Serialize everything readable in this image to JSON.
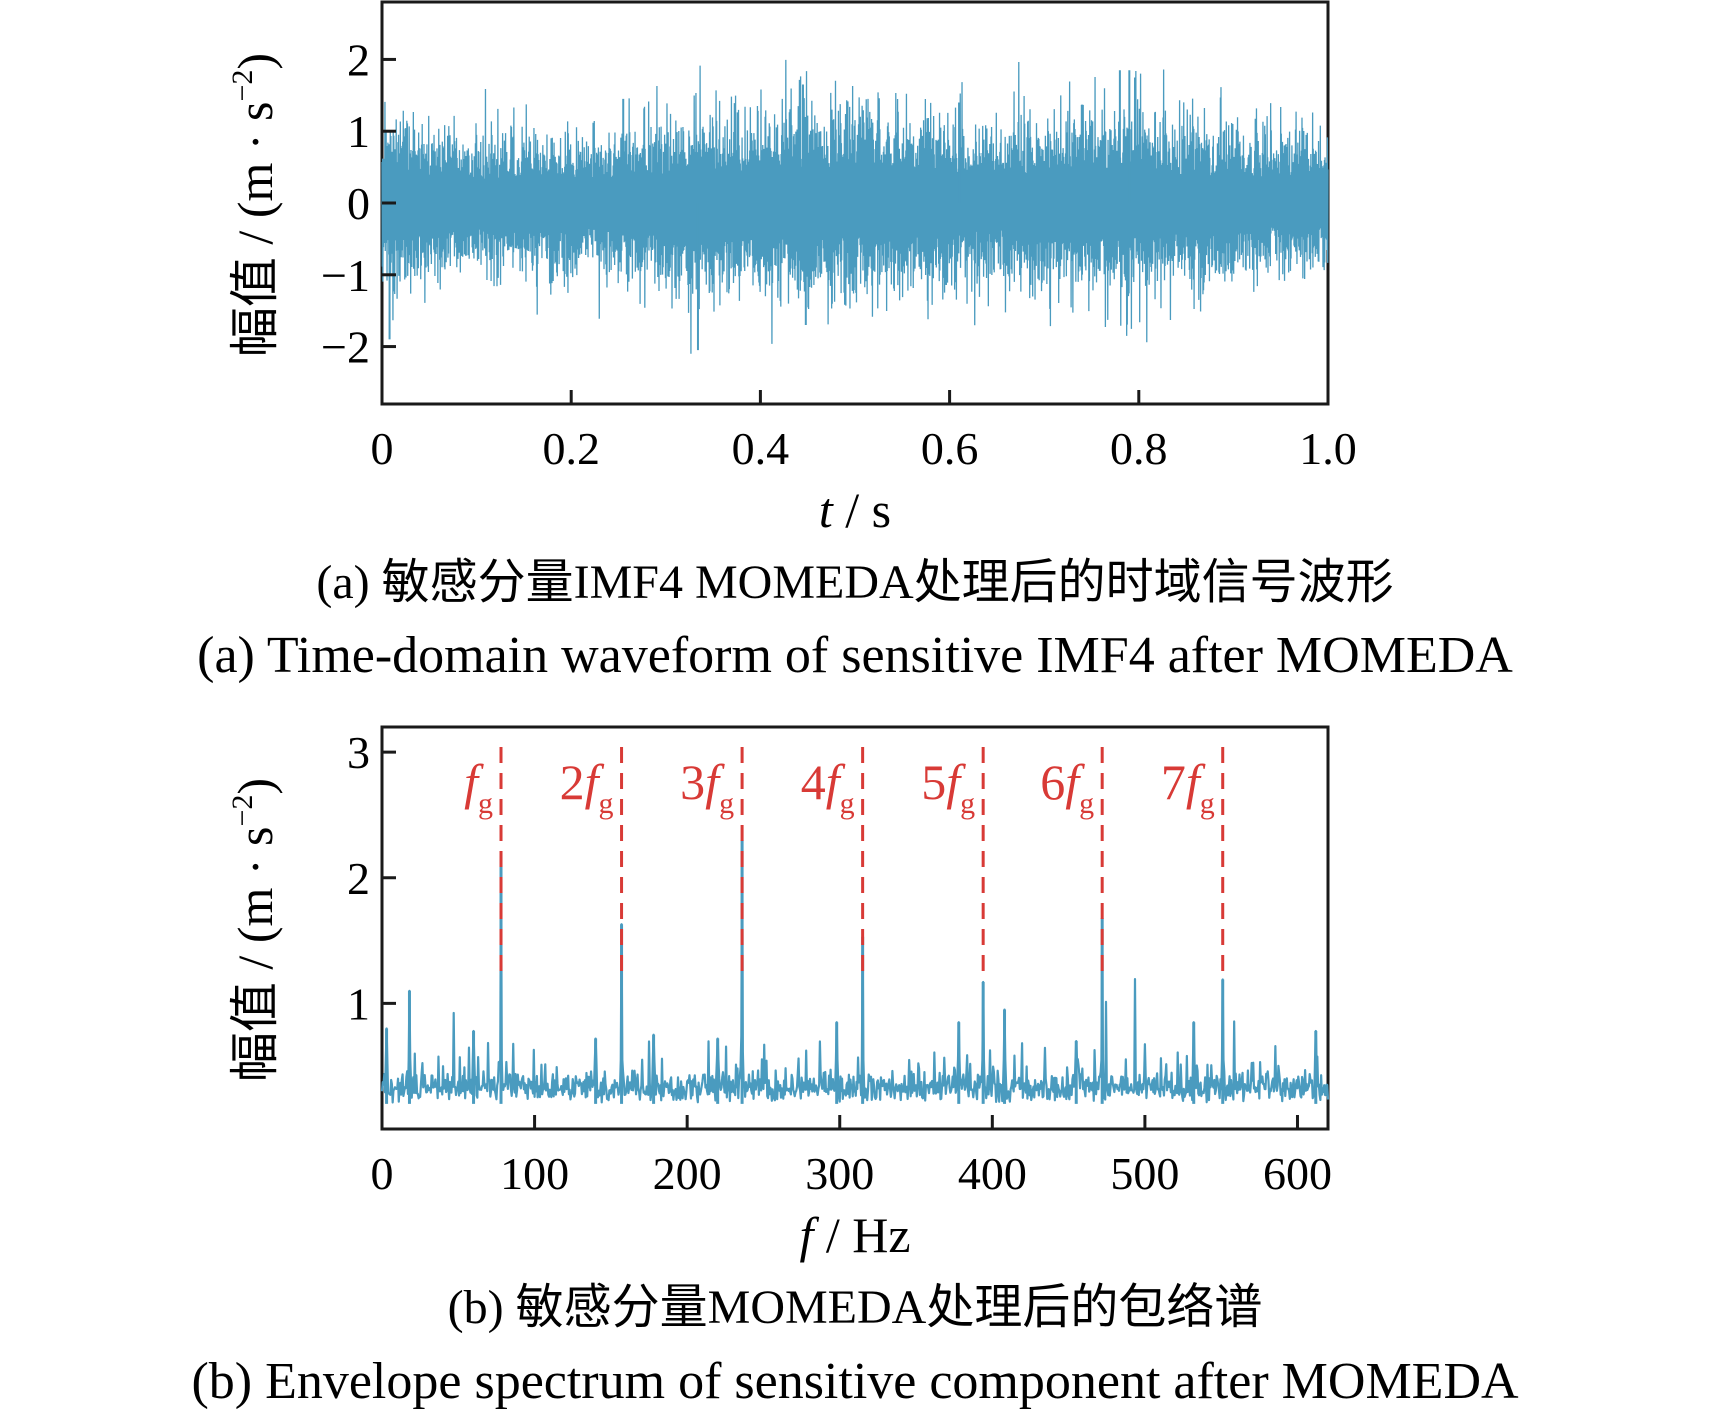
{
  "colors": {
    "signal": "#4a9bbf",
    "harmonic": "#d83a36",
    "axis": "#1a1a1a"
  },
  "chart_data": [
    {
      "type": "line",
      "panel": "a",
      "xlabel_var": "t",
      "xlabel_unit": " / s",
      "ylabel": "幅值 / (m · s",
      "ylabel_sup": "−2",
      "ylabel_close": ")",
      "xlim": [
        0,
        1.0
      ],
      "ylim": [
        -2.8,
        2.8
      ],
      "xticks": [
        0,
        0.2,
        0.4,
        0.6,
        0.8,
        1.0
      ],
      "xtick_labels": [
        "0",
        "0.2",
        "0.4",
        "0.6",
        "0.8",
        "1.0"
      ],
      "yticks": [
        -2,
        -1,
        0,
        1,
        2
      ],
      "ytick_labels": [
        "−2",
        "−1",
        "0",
        "1",
        "2"
      ],
      "series": [
        {
          "envelope_x": [
            0.0,
            0.05,
            0.1,
            0.15,
            0.2,
            0.25,
            0.3,
            0.35,
            0.4,
            0.45,
            0.5,
            0.55,
            0.6,
            0.65,
            0.7,
            0.75,
            0.8,
            0.85,
            0.9,
            0.95,
            1.0
          ],
          "envelope_amplitude": [
            1.2,
            1.0,
            0.9,
            0.9,
            0.9,
            1.0,
            1.1,
            1.2,
            1.3,
            1.3,
            1.3,
            1.2,
            1.1,
            1.0,
            1.1,
            1.2,
            1.3,
            1.1,
            1.0,
            0.9,
            0.9
          ],
          "peaks": [
            {
              "x": 0.008,
              "y": -1.9
            },
            {
              "x": 0.334,
              "y": -2.05
            },
            {
              "x": 0.445,
              "y": 1.65
            },
            {
              "x": 0.78,
              "y": 1.85
            },
            {
              "x": 0.79,
              "y": 1.85
            },
            {
              "x": 0.448,
              "y": -1.7
            },
            {
              "x": 0.255,
              "y": 1.45
            },
            {
              "x": 0.61,
              "y": 1.4
            }
          ]
        }
      ],
      "caption_cn": "(a)  敏感分量IMF4 MOMEDA处理后的时域信号波形",
      "caption_en": "(a)  Time-domain waveform of sensitive IMF4 after MOMEDA"
    },
    {
      "type": "line",
      "panel": "b",
      "xlabel_var": "f",
      "xlabel_unit": " / Hz",
      "ylabel": "幅值 / (m · s",
      "ylabel_sup": "−2",
      "ylabel_close": ")",
      "xlim": [
        0,
        620
      ],
      "ylim": [
        0,
        3.2
      ],
      "xticks": [
        0,
        100,
        200,
        300,
        400,
        500,
        600
      ],
      "xtick_labels": [
        "0",
        "100",
        "200",
        "300",
        "400",
        "500",
        "600"
      ],
      "yticks": [
        1,
        2,
        3
      ],
      "ytick_labels": [
        "1",
        "2",
        "3"
      ],
      "series": [
        {
          "baseline": 0.25,
          "peaks": [
            {
              "x": 18,
              "y": 1.1
            },
            {
              "x": 78,
              "y": 2.17
            },
            {
              "x": 157,
              "y": 1.63
            },
            {
              "x": 236,
              "y": 2.3
            },
            {
              "x": 315,
              "y": 1.53
            },
            {
              "x": 394,
              "y": 1.17
            },
            {
              "x": 472,
              "y": 1.68
            },
            {
              "x": 551,
              "y": 1.19
            },
            {
              "x": 3,
              "y": 0.8
            },
            {
              "x": 60,
              "y": 0.78
            },
            {
              "x": 140,
              "y": 0.72
            },
            {
              "x": 178,
              "y": 0.75
            },
            {
              "x": 220,
              "y": 0.72
            },
            {
              "x": 298,
              "y": 0.85
            },
            {
              "x": 378,
              "y": 0.85
            },
            {
              "x": 408,
              "y": 0.95
            },
            {
              "x": 455,
              "y": 0.7
            },
            {
              "x": 532,
              "y": 0.85
            },
            {
              "x": 612,
              "y": 0.78
            }
          ]
        }
      ],
      "harmonics": [
        {
          "x": 78,
          "coef": "",
          "var": "f",
          "sub": "g"
        },
        {
          "x": 157,
          "coef": "2",
          "var": "f",
          "sub": "g"
        },
        {
          "x": 236,
          "coef": "3",
          "var": "f",
          "sub": "g"
        },
        {
          "x": 315,
          "coef": "4",
          "var": "f",
          "sub": "g"
        },
        {
          "x": 394,
          "coef": "5",
          "var": "f",
          "sub": "g"
        },
        {
          "x": 472,
          "coef": "6",
          "var": "f",
          "sub": "g"
        },
        {
          "x": 551,
          "coef": "7",
          "var": "f",
          "sub": "g"
        }
      ],
      "caption_cn": "(b)  敏感分量MOMEDA处理后的包络谱",
      "caption_en": "(b)  Envelope spectrum of sensitive component after MOMEDA"
    }
  ]
}
